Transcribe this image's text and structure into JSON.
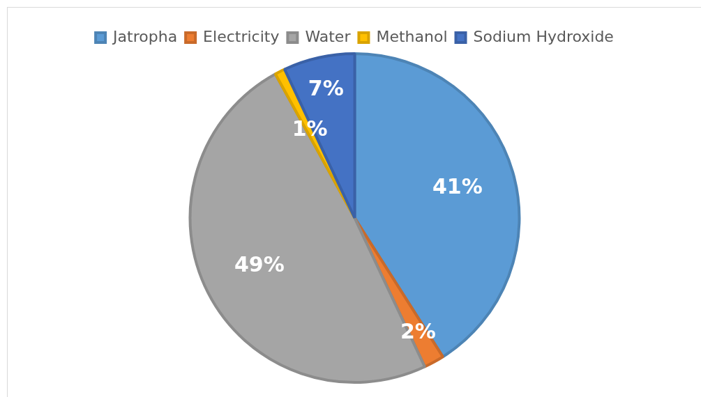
{
  "chart_data": {
    "type": "pie",
    "categories": [
      "Jatropha",
      "Electricity",
      "Water",
      "Methanol",
      "Sodium Hydroxide"
    ],
    "values": [
      41,
      2,
      49,
      1,
      7
    ],
    "colors": [
      "#5b9bd5",
      "#ed7d31",
      "#a5a5a5",
      "#ffc000",
      "#4472c4"
    ],
    "value_labels": [
      "41%",
      "2%",
      "49%",
      "1%",
      "7%"
    ],
    "legend": "top"
  }
}
